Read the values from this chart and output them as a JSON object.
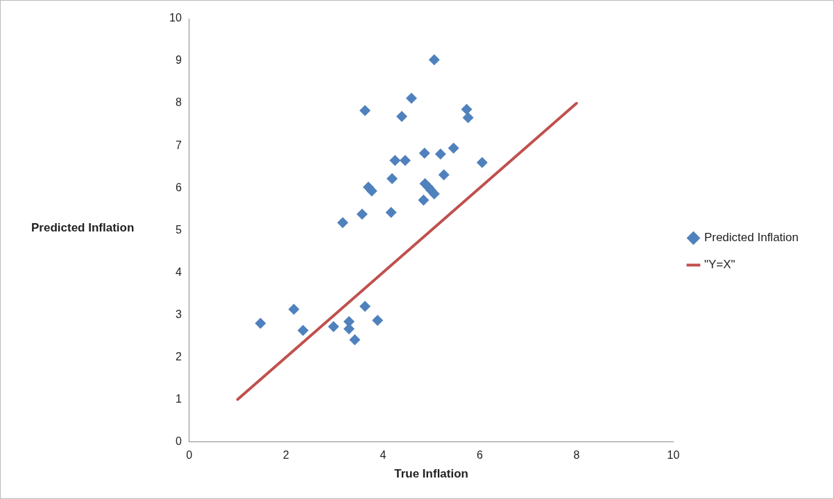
{
  "chart_data": {
    "type": "scatter",
    "xlabel": "True Inflation",
    "ylabel": "Predicted Inflation",
    "xlim": [
      0,
      10
    ],
    "xticks": [
      0,
      2,
      4,
      6,
      8,
      10
    ],
    "ylim": [
      0,
      10
    ],
    "yticks": [
      0,
      1,
      2,
      3,
      4,
      5,
      6,
      7,
      8,
      9,
      10
    ],
    "grid": false,
    "legend": "right",
    "marker": "diamond",
    "series": [
      {
        "name": "Predicted Inflation",
        "color": "#4f81bd",
        "x": [
          1.47,
          2.16,
          2.35,
          2.98,
          3.3,
          3.3,
          3.42,
          3.63,
          3.89,
          3.17,
          3.57,
          3.63,
          3.7,
          3.77,
          4.17,
          4.19,
          4.25,
          4.39,
          4.46,
          4.59,
          4.84,
          4.86,
          4.87,
          4.94,
          4.99,
          5.06,
          5.06,
          5.19,
          5.26,
          5.46,
          5.73,
          5.76,
          6.05
        ],
        "values": [
          2.8,
          3.13,
          2.63,
          2.72,
          2.84,
          2.67,
          2.41,
          3.2,
          2.87,
          5.18,
          5.38,
          7.83,
          6.02,
          5.93,
          5.42,
          6.22,
          6.65,
          7.69,
          6.65,
          8.12,
          5.71,
          6.82,
          6.1,
          6.02,
          5.95,
          5.86,
          9.03,
          6.8,
          6.31,
          6.94,
          7.86,
          7.66,
          6.6
        ]
      },
      {
        "name": "\"Y=X\"",
        "type": "line",
        "color": "#c0504d",
        "marker": "none",
        "line_style": "solid",
        "x": [
          1,
          8
        ],
        "values": [
          1,
          8
        ]
      }
    ]
  }
}
